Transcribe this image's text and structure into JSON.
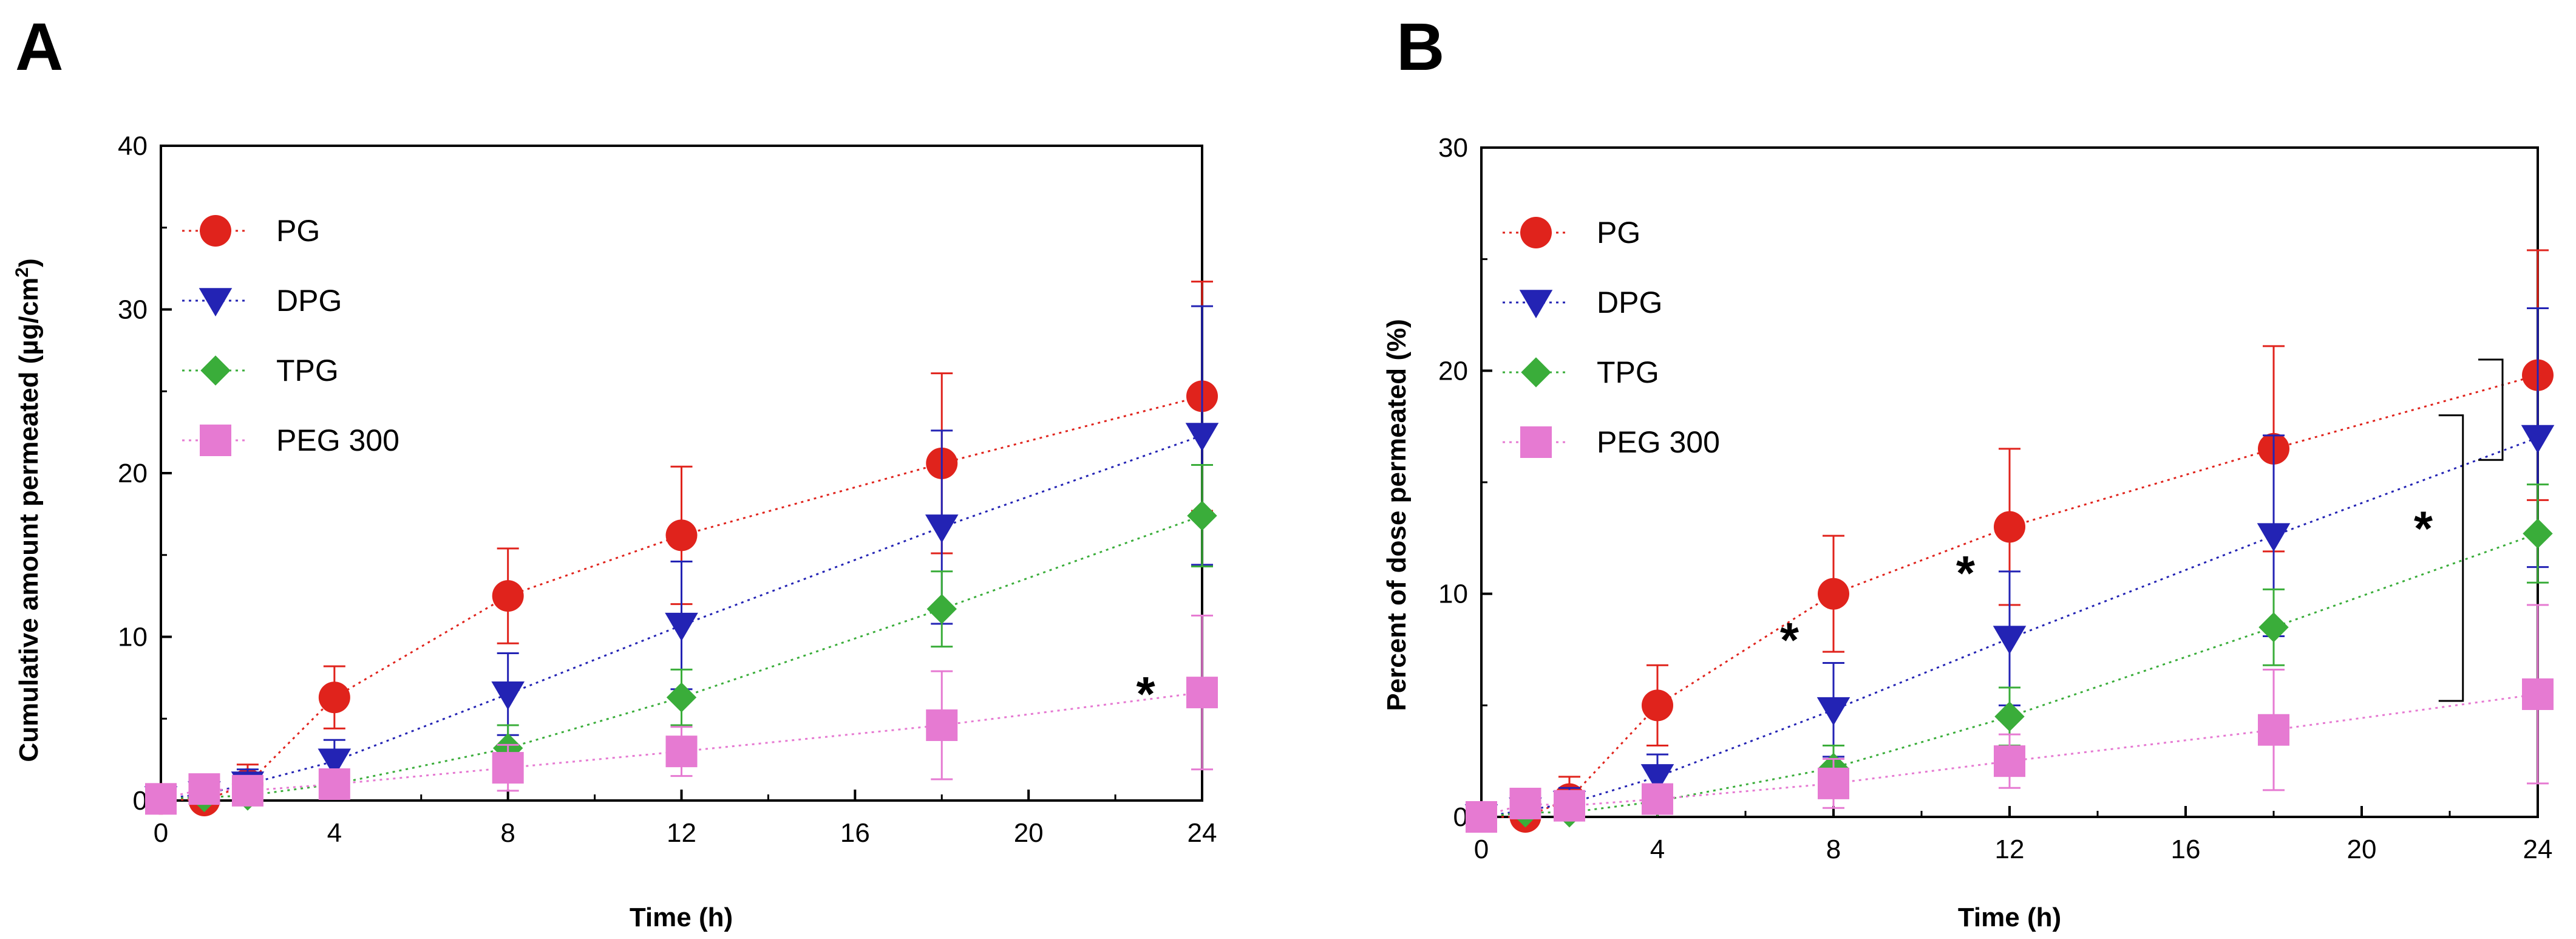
{
  "chart_data": [
    {
      "type": "line",
      "panel_label": "A",
      "xlabel": "Time (h)",
      "ylabel_main": "Cumulative amount permeated (µg/cm",
      "ylabel_sup": "2",
      "ylabel_close": ")",
      "xlim": [
        0,
        24
      ],
      "ylim": [
        0,
        40
      ],
      "xticks": [
        0,
        4,
        8,
        12,
        16,
        20,
        24
      ],
      "yticks": [
        0,
        10,
        20,
        30,
        40
      ],
      "grid": false,
      "legend_position": "top-left",
      "x": [
        0,
        1,
        2,
        4,
        8,
        12,
        18,
        24
      ],
      "series": [
        {
          "name": "PG",
          "color": "#e0231c",
          "marker": "circle",
          "values": [
            0.1,
            0.0,
            1.0,
            6.3,
            12.5,
            16.2,
            20.6,
            24.7
          ],
          "errors": [
            0.2,
            0.3,
            1.2,
            1.9,
            2.9,
            4.2,
            5.5,
            7.0
          ]
        },
        {
          "name": "DPG",
          "color": "#2323b4",
          "marker": "triangle-down",
          "values": [
            0.1,
            0.4,
            1.0,
            2.4,
            6.5,
            10.7,
            16.7,
            22.3
          ],
          "errors": [
            0.2,
            0.4,
            0.9,
            1.3,
            2.5,
            3.9,
            5.9,
            7.9
          ]
        },
        {
          "name": "TPG",
          "color": "#3aad3a",
          "marker": "diamond",
          "values": [
            0.1,
            0.2,
            0.3,
            1.0,
            3.2,
            6.3,
            11.7,
            17.4
          ],
          "errors": [
            0.2,
            0.2,
            0.4,
            0.7,
            1.4,
            1.7,
            2.3,
            3.1
          ]
        },
        {
          "name": "PEG 300",
          "color": "#e67ad2",
          "marker": "square",
          "values": [
            0.1,
            0.7,
            0.6,
            1.0,
            2.0,
            3.0,
            4.6,
            6.6
          ],
          "errors": [
            0.2,
            0.3,
            0.4,
            0.8,
            1.4,
            1.5,
            3.3,
            4.7
          ]
        }
      ],
      "annotations": [
        {
          "text": "*",
          "x": 22.7,
          "y": 6.6
        }
      ]
    },
    {
      "type": "line",
      "panel_label": "B",
      "xlabel": "Time (h)",
      "ylabel_main": "Percent of dose permeated (%)",
      "ylabel_sup": "",
      "ylabel_close": "",
      "xlim": [
        0,
        24
      ],
      "ylim": [
        0,
        30
      ],
      "xticks": [
        0,
        4,
        8,
        12,
        16,
        20,
        24
      ],
      "yticks": [
        0,
        10,
        20,
        30
      ],
      "grid": false,
      "legend_position": "top-left",
      "x": [
        0,
        1,
        2,
        4,
        8,
        12,
        18,
        24
      ],
      "series": [
        {
          "name": "PG",
          "color": "#e0231c",
          "marker": "circle",
          "values": [
            0.0,
            0.0,
            0.8,
            5.0,
            10.0,
            13.0,
            16.5,
            19.8
          ],
          "errors": [
            0.2,
            0.2,
            1.0,
            1.8,
            2.6,
            3.5,
            4.6,
            5.6
          ]
        },
        {
          "name": "DPG",
          "color": "#2323b4",
          "marker": "triangle-down",
          "values": [
            0.0,
            0.3,
            0.6,
            1.8,
            4.8,
            8.0,
            12.6,
            17.0
          ],
          "errors": [
            0.2,
            0.3,
            0.7,
            1.0,
            2.1,
            3.0,
            4.5,
            5.8
          ]
        },
        {
          "name": "TPG",
          "color": "#3aad3a",
          "marker": "diamond",
          "values": [
            0.0,
            0.2,
            0.2,
            0.7,
            2.2,
            4.5,
            8.5,
            12.7
          ],
          "errors": [
            0.2,
            0.2,
            0.3,
            0.5,
            1.0,
            1.3,
            1.7,
            2.2
          ]
        },
        {
          "name": "PEG 300",
          "color": "#e67ad2",
          "marker": "square",
          "values": [
            0.0,
            0.6,
            0.5,
            0.8,
            1.5,
            2.5,
            3.9,
            5.5
          ],
          "errors": [
            0.2,
            0.3,
            0.3,
            0.6,
            1.1,
            1.2,
            2.7,
            4.0
          ]
        }
      ],
      "annotations": [
        {
          "text": "*",
          "x": 7.0,
          "y": 8.0
        },
        {
          "text": "*",
          "x": 11.0,
          "y": 11.0
        },
        {
          "text": "*",
          "x": 21.4,
          "y": 13.0
        }
      ],
      "brackets": [
        {
          "x": 23.2,
          "y1": 16.0,
          "y2": 20.5
        },
        {
          "x": 22.3,
          "y1": 5.2,
          "y2": 18.0
        }
      ]
    }
  ]
}
